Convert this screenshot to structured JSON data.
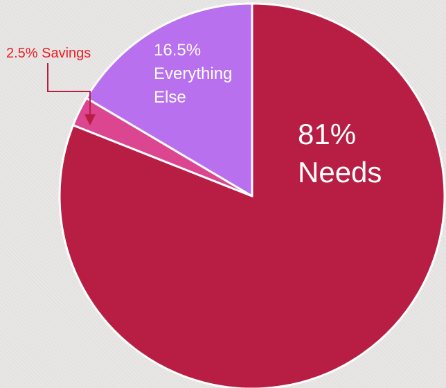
{
  "chart_data": {
    "type": "pie",
    "slices": [
      {
        "name": "Needs",
        "percent_label": "81%",
        "value": 81,
        "color": "#b81e43"
      },
      {
        "name": "Savings",
        "percent_label": "2.5%",
        "value": 2.5,
        "color": "#dc4590"
      },
      {
        "name": "Everything Else",
        "name_lines": [
          "Everything",
          "Else"
        ],
        "percent_label": "16.5%",
        "value": 16.5,
        "color": "#b870ee"
      }
    ],
    "callout": {
      "text": "2.5% Savings",
      "slice": "Savings",
      "color": "#ee1c25",
      "arrow_color": "#b81e43"
    },
    "start_angle_deg": 0,
    "direction": "clockwise",
    "slice_border_color": "#ffffff",
    "title": "",
    "legend": "none"
  }
}
